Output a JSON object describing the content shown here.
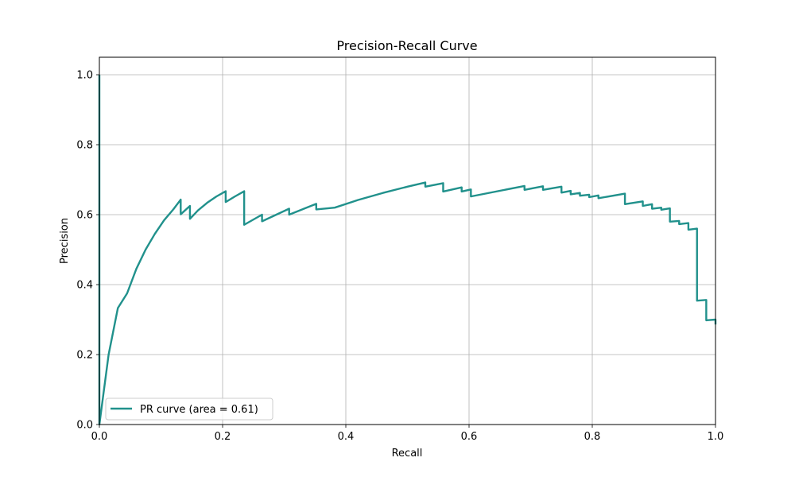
{
  "chart_data": {
    "type": "line",
    "title": "Precision-Recall Curve",
    "xlabel": "Recall",
    "ylabel": "Precision",
    "xlim": [
      0.0,
      1.0
    ],
    "ylim": [
      0.0,
      1.05
    ],
    "grid": true,
    "x_ticks": [
      0.0,
      0.2,
      0.4,
      0.6,
      0.8,
      1.0
    ],
    "y_ticks": [
      0.0,
      0.2,
      0.4,
      0.6,
      0.8,
      1.0
    ],
    "x_tick_labels": [
      "0.0",
      "0.2",
      "0.4",
      "0.6",
      "0.8",
      "1.0"
    ],
    "y_tick_labels": [
      "0.0",
      "0.2",
      "0.4",
      "0.6",
      "0.8",
      "1.0"
    ],
    "legend": {
      "position": "lower-left",
      "entries": [
        "PR curve (area = 0.61)"
      ]
    },
    "series": [
      {
        "name": "PR curve (area = 0.61)",
        "color": "#21918c",
        "points": [
          [
            0.0,
            1.0
          ],
          [
            0.0,
            0.0
          ],
          [
            0.015,
            0.2
          ],
          [
            0.03,
            0.333
          ],
          [
            0.045,
            0.375
          ],
          [
            0.06,
            0.445
          ],
          [
            0.075,
            0.5
          ],
          [
            0.09,
            0.545
          ],
          [
            0.105,
            0.584
          ],
          [
            0.12,
            0.615
          ],
          [
            0.132,
            0.643
          ],
          [
            0.132,
            0.601
          ],
          [
            0.147,
            0.625
          ],
          [
            0.147,
            0.588
          ],
          [
            0.16,
            0.612
          ],
          [
            0.175,
            0.634
          ],
          [
            0.19,
            0.652
          ],
          [
            0.205,
            0.667
          ],
          [
            0.205,
            0.636
          ],
          [
            0.22,
            0.652
          ],
          [
            0.235,
            0.667
          ],
          [
            0.235,
            0.571
          ],
          [
            0.264,
            0.6
          ],
          [
            0.264,
            0.581
          ],
          [
            0.308,
            0.617
          ],
          [
            0.308,
            0.6
          ],
          [
            0.352,
            0.631
          ],
          [
            0.352,
            0.615
          ],
          [
            0.382,
            0.62
          ],
          [
            0.42,
            0.642
          ],
          [
            0.46,
            0.662
          ],
          [
            0.5,
            0.68
          ],
          [
            0.529,
            0.692
          ],
          [
            0.529,
            0.68
          ],
          [
            0.558,
            0.69
          ],
          [
            0.558,
            0.666
          ],
          [
            0.588,
            0.678
          ],
          [
            0.588,
            0.666
          ],
          [
            0.603,
            0.672
          ],
          [
            0.603,
            0.652
          ],
          [
            0.69,
            0.682
          ],
          [
            0.69,
            0.671
          ],
          [
            0.72,
            0.681
          ],
          [
            0.72,
            0.671
          ],
          [
            0.75,
            0.68
          ],
          [
            0.75,
            0.663
          ],
          [
            0.765,
            0.668
          ],
          [
            0.765,
            0.658
          ],
          [
            0.78,
            0.662
          ],
          [
            0.78,
            0.654
          ],
          [
            0.795,
            0.657
          ],
          [
            0.795,
            0.65
          ],
          [
            0.81,
            0.655
          ],
          [
            0.81,
            0.647
          ],
          [
            0.853,
            0.66
          ],
          [
            0.853,
            0.63
          ],
          [
            0.882,
            0.638
          ],
          [
            0.882,
            0.625
          ],
          [
            0.897,
            0.63
          ],
          [
            0.897,
            0.617
          ],
          [
            0.912,
            0.62
          ],
          [
            0.912,
            0.614
          ],
          [
            0.926,
            0.618
          ],
          [
            0.926,
            0.58
          ],
          [
            0.941,
            0.582
          ],
          [
            0.941,
            0.573
          ],
          [
            0.956,
            0.576
          ],
          [
            0.956,
            0.557
          ],
          [
            0.97,
            0.56
          ],
          [
            0.97,
            0.354
          ],
          [
            0.985,
            0.356
          ],
          [
            0.985,
            0.298
          ],
          [
            1.0,
            0.3
          ],
          [
            1.0,
            0.286
          ]
        ]
      }
    ]
  }
}
